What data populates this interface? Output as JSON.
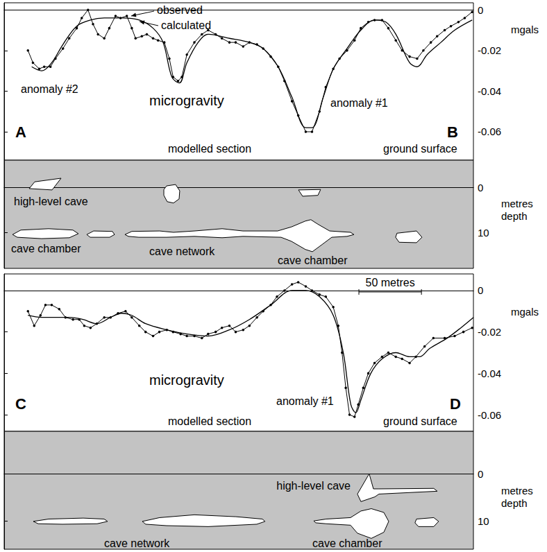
{
  "chart_data": [
    {
      "type": "line",
      "title": "microgravity",
      "ylabel": "mgals",
      "xlim": [
        0,
        375
      ],
      "ylim": [
        -0.074,
        0.0035
      ],
      "yticks": [
        0,
        -0.02,
        -0.04,
        -0.06
      ],
      "tick_labels": "y",
      "grid": false,
      "annotations": [
        "A",
        "B",
        "anomaly #2",
        "anomaly #1",
        "modelled section",
        "ground surface"
      ],
      "series": [
        {
          "name": "observed",
          "color": "#000000",
          "marker": "dot",
          "line_style": "solid",
          "x": [
            19,
            23,
            28,
            32,
            37,
            41,
            47,
            52,
            58,
            62,
            67,
            71,
            75,
            80,
            84,
            89,
            93,
            98,
            102,
            105,
            110,
            114,
            119,
            123,
            128,
            132,
            135,
            139,
            142,
            146,
            152,
            158,
            163,
            169,
            174,
            180,
            185,
            191,
            196,
            202,
            207,
            213,
            219,
            224,
            230,
            235,
            241,
            246,
            252,
            257,
            263,
            268,
            274,
            280,
            285,
            291,
            296,
            302,
            307,
            313,
            318,
            324,
            330,
            335,
            341,
            346,
            352,
            357,
            363,
            368,
            374
          ],
          "values": [
            -0.02,
            -0.026,
            -0.029,
            -0.028,
            -0.028,
            -0.024,
            -0.019,
            -0.014,
            -0.009,
            -0.004,
            0,
            -0.007,
            -0.012,
            -0.014,
            -0.009,
            -0.003,
            -0.004,
            -0.003,
            -0.009,
            -0.014,
            -0.013,
            -0.012,
            -0.014,
            -0.015,
            -0.016,
            -0.024,
            -0.033,
            -0.035,
            -0.033,
            -0.022,
            -0.016,
            -0.012,
            -0.01,
            -0.012,
            -0.014,
            -0.016,
            -0.016,
            -0.018,
            -0.016,
            -0.017,
            -0.019,
            -0.023,
            -0.028,
            -0.035,
            -0.045,
            -0.052,
            -0.06,
            -0.06,
            -0.05,
            -0.038,
            -0.029,
            -0.024,
            -0.02,
            -0.015,
            -0.009,
            -0.006,
            -0.005,
            -0.005,
            -0.009,
            -0.015,
            -0.02,
            -0.023,
            -0.024,
            -0.02,
            -0.016,
            -0.013,
            -0.01,
            -0.008,
            -0.006,
            -0.004,
            -0.001
          ]
        },
        {
          "name": "calculated",
          "color": "#000000",
          "marker": "none",
          "line_style": "smooth",
          "x": [
            22,
            30,
            38,
            47,
            58,
            69,
            80,
            94,
            108,
            119,
            127,
            134,
            140,
            146,
            155,
            163,
            180,
            196,
            207,
            219,
            230,
            241,
            246,
            255,
            263,
            274,
            285,
            296,
            305,
            313,
            324,
            330,
            338,
            349,
            360,
            374
          ],
          "values": [
            -0.028,
            -0.03,
            -0.026,
            -0.017,
            -0.008,
            -0.005,
            -0.004,
            -0.004,
            -0.005,
            -0.009,
            -0.016,
            -0.033,
            -0.036,
            -0.026,
            -0.016,
            -0.012,
            -0.014,
            -0.016,
            -0.019,
            -0.028,
            -0.043,
            -0.058,
            -0.058,
            -0.043,
            -0.029,
            -0.019,
            -0.01,
            -0.005,
            -0.006,
            -0.012,
            -0.026,
            -0.028,
            -0.022,
            -0.016,
            -0.01,
            -0.005
          ]
        }
      ]
    },
    {
      "type": "section",
      "ylabel": "metres depth",
      "xlim": [
        0,
        375
      ],
      "ylim": [
        -6,
        18
      ],
      "yticks": [
        0,
        10
      ],
      "tick_labels": "y",
      "grid": false,
      "annotations": [
        "high-level cave",
        "cave chamber",
        "cave network",
        "cave chamber"
      ],
      "shapes": [
        [
          [
            20,
            0.3
          ],
          [
            24.4,
            -1.2
          ],
          [
            45.5,
            -2
          ],
          [
            38.3,
            0.6
          ]
        ],
        [
          [
            129.8,
            -0.3
          ],
          [
            137,
            -0.6
          ],
          [
            140.3,
            0.8
          ],
          [
            139.8,
            2.6
          ],
          [
            135.3,
            3.5
          ],
          [
            130.3,
            3.2
          ],
          [
            127.6,
            1.8
          ],
          [
            127.6,
            0.5
          ]
        ],
        [
          [
            235.2,
            0.6
          ],
          [
            252.9,
            0.5
          ],
          [
            250.7,
            1.8
          ],
          [
            238.5,
            2
          ]
        ],
        [
          [
            6.7,
            10.5
          ],
          [
            13.3,
            9.5
          ],
          [
            35.5,
            9.2
          ],
          [
            54.9,
            9.5
          ],
          [
            59.3,
            10.3
          ],
          [
            52.1,
            11.2
          ],
          [
            29.9,
            11.4
          ],
          [
            10.5,
            11.1
          ]
        ],
        [
          [
            66,
            10.5
          ],
          [
            71.5,
            9.7
          ],
          [
            86.5,
            9.8
          ],
          [
            88.2,
            10.5
          ],
          [
            84.3,
            11.1
          ],
          [
            68.8,
            11.1
          ]
        ],
        [
          [
            96.5,
            10.5
          ],
          [
            102,
            9.8
          ],
          [
            124.2,
            9.7
          ],
          [
            135.3,
            10
          ],
          [
            152,
            9.7
          ],
          [
            174.2,
            9.2
          ],
          [
            190.8,
            9.7
          ],
          [
            218.5,
            9.7
          ],
          [
            229.6,
            8.8
          ],
          [
            240.7,
            7.5
          ],
          [
            245.1,
            7.2
          ],
          [
            250.7,
            8.2
          ],
          [
            260.1,
            9.7
          ],
          [
            276.8,
            10
          ],
          [
            279.5,
            10.5
          ],
          [
            274,
            10.9
          ],
          [
            261.8,
            11.1
          ],
          [
            254.6,
            12.6
          ],
          [
            246.3,
            14.3
          ],
          [
            240.7,
            13.8
          ],
          [
            229.6,
            12
          ],
          [
            221.3,
            11.1
          ],
          [
            190.8,
            10.9
          ],
          [
            174.2,
            11.2
          ],
          [
            152,
            10.9
          ],
          [
            129.8,
            11.1
          ],
          [
            107.6,
            11.1
          ],
          [
            99.3,
            10.9
          ]
        ],
        [
          [
            313.9,
            10.2
          ],
          [
            329.5,
            9.7
          ],
          [
            333.9,
            11.1
          ],
          [
            329.5,
            12.3
          ],
          [
            315.6,
            12.2
          ],
          [
            312.8,
            11.1
          ]
        ]
      ]
    },
    {
      "type": "line",
      "title": "microgravity",
      "ylabel": "mgals",
      "xlim": [
        0,
        375
      ],
      "ylim": [
        -0.068,
        0.008
      ],
      "yticks": [
        0,
        -0.02,
        -0.04,
        -0.06
      ],
      "tick_labels": "y",
      "grid": false,
      "annotations": [
        "C",
        "D",
        "anomaly #1",
        "modelled section",
        "ground surface"
      ],
      "scale_bar": {
        "label": "50 metres",
        "length": 50
      },
      "series": [
        {
          "color": "#000000",
          "marker": "dot",
          "line_style": "solid",
          "x": [
            19,
            24,
            29,
            33,
            38,
            44,
            49,
            55,
            60,
            64,
            69,
            74,
            80,
            85,
            91,
            97,
            102,
            108,
            113,
            119,
            124,
            130,
            135,
            141,
            146,
            152,
            158,
            163,
            169,
            174,
            180,
            185,
            191,
            196,
            202,
            207,
            213,
            218,
            224,
            230,
            235,
            241,
            246,
            252,
            257,
            263,
            267,
            270,
            273,
            276,
            280,
            283,
            287,
            291,
            296,
            302,
            307,
            313,
            318,
            324,
            329,
            336,
            343,
            352,
            360,
            367,
            374
          ],
          "values": [
            -0.01,
            -0.017,
            -0.012,
            -0.007,
            -0.007,
            -0.009,
            -0.013,
            -0.014,
            -0.014,
            -0.017,
            -0.018,
            -0.016,
            -0.013,
            -0.013,
            -0.011,
            -0.01,
            -0.013,
            -0.017,
            -0.02,
            -0.022,
            -0.02,
            -0.019,
            -0.02,
            -0.021,
            -0.022,
            -0.022,
            -0.023,
            -0.021,
            -0.02,
            -0.018,
            -0.017,
            -0.02,
            -0.019,
            -0.017,
            -0.013,
            -0.01,
            -0.007,
            -0.003,
            0,
            0.003,
            0.004,
            0.002,
            0,
            -0.002,
            -0.003,
            -0.008,
            -0.017,
            -0.03,
            -0.047,
            -0.06,
            -0.061,
            -0.055,
            -0.047,
            -0.04,
            -0.035,
            -0.032,
            -0.03,
            -0.032,
            -0.033,
            -0.035,
            -0.032,
            -0.027,
            -0.023,
            -0.023,
            -0.022,
            -0.02,
            -0.018
          ]
        },
        {
          "color": "#000000",
          "marker": "none",
          "line_style": "smooth",
          "x": [
            19,
            30,
            41,
            52,
            63,
            74,
            85,
            94,
            102,
            113,
            130,
            146,
            163,
            180,
            196,
            213,
            230,
            241,
            252,
            263,
            271,
            277,
            281,
            285,
            293,
            302,
            313,
            324,
            332,
            340,
            354,
            365,
            375
          ],
          "values": [
            -0.012,
            -0.013,
            -0.013,
            -0.013,
            -0.014,
            -0.016,
            -0.013,
            -0.011,
            -0.012,
            -0.016,
            -0.019,
            -0.021,
            -0.022,
            -0.019,
            -0.014,
            -0.007,
            0,
            0,
            -0.003,
            -0.012,
            -0.03,
            -0.055,
            -0.059,
            -0.053,
            -0.04,
            -0.033,
            -0.03,
            -0.032,
            -0.032,
            -0.028,
            -0.023,
            -0.018,
            -0.013
          ]
        }
      ]
    },
    {
      "type": "section",
      "ylabel": "metres depth",
      "xlim": [
        0,
        375
      ],
      "ylim": [
        -9,
        16
      ],
      "yticks": [
        0,
        10
      ],
      "tick_labels": "y",
      "grid": false,
      "annotations": [
        "high-level cave",
        "cave network",
        "cave chamber"
      ],
      "shapes": [
        [
          [
            23.3,
            10.1
          ],
          [
            35.5,
            9.6
          ],
          [
            63.2,
            9.4
          ],
          [
            79.9,
            9.6
          ],
          [
            82.6,
            10.1
          ],
          [
            74.3,
            10.6
          ],
          [
            46.6,
            10.7
          ],
          [
            27.2,
            10.6
          ]
        ],
        [
          [
            110.4,
            10.1
          ],
          [
            124.2,
            9.3
          ],
          [
            152,
            8.7
          ],
          [
            185.2,
            9.1
          ],
          [
            206.3,
            9.6
          ],
          [
            208.5,
            10.1
          ],
          [
            201.9,
            10.7
          ],
          [
            163.1,
            11.2
          ],
          [
            129.8,
            11
          ],
          [
            113.1,
            10.7
          ]
        ],
        [
          [
            247.4,
            10
          ],
          [
            257.3,
            9.6
          ],
          [
            276.8,
            9.3
          ],
          [
            285.1,
            7.9
          ],
          [
            293.4,
            7.4
          ],
          [
            303.4,
            8.2
          ],
          [
            307.3,
            10.1
          ],
          [
            303.4,
            12.4
          ],
          [
            293.4,
            13.7
          ],
          [
            282.3,
            12.6
          ],
          [
            276.8,
            10.9
          ],
          [
            257.3,
            10.6
          ],
          [
            249,
            10.4
          ]
        ],
        [
          [
            329.5,
            9.6
          ],
          [
            343.3,
            9.3
          ],
          [
            347.2,
            10.1
          ],
          [
            343.3,
            11.2
          ],
          [
            331.1,
            11.2
          ],
          [
            328.3,
            10.4
          ]
        ],
        [
          [
            282.3,
            4.3
          ],
          [
            291.7,
            0
          ],
          [
            295.1,
            3.2
          ],
          [
            299.5,
            3.2
          ],
          [
            343.3,
            3.1
          ],
          [
            346.1,
            3.7
          ],
          [
            299.5,
            4.3
          ],
          [
            296.2,
            4.9
          ],
          [
            285.1,
            5.9
          ]
        ]
      ]
    }
  ]
}
